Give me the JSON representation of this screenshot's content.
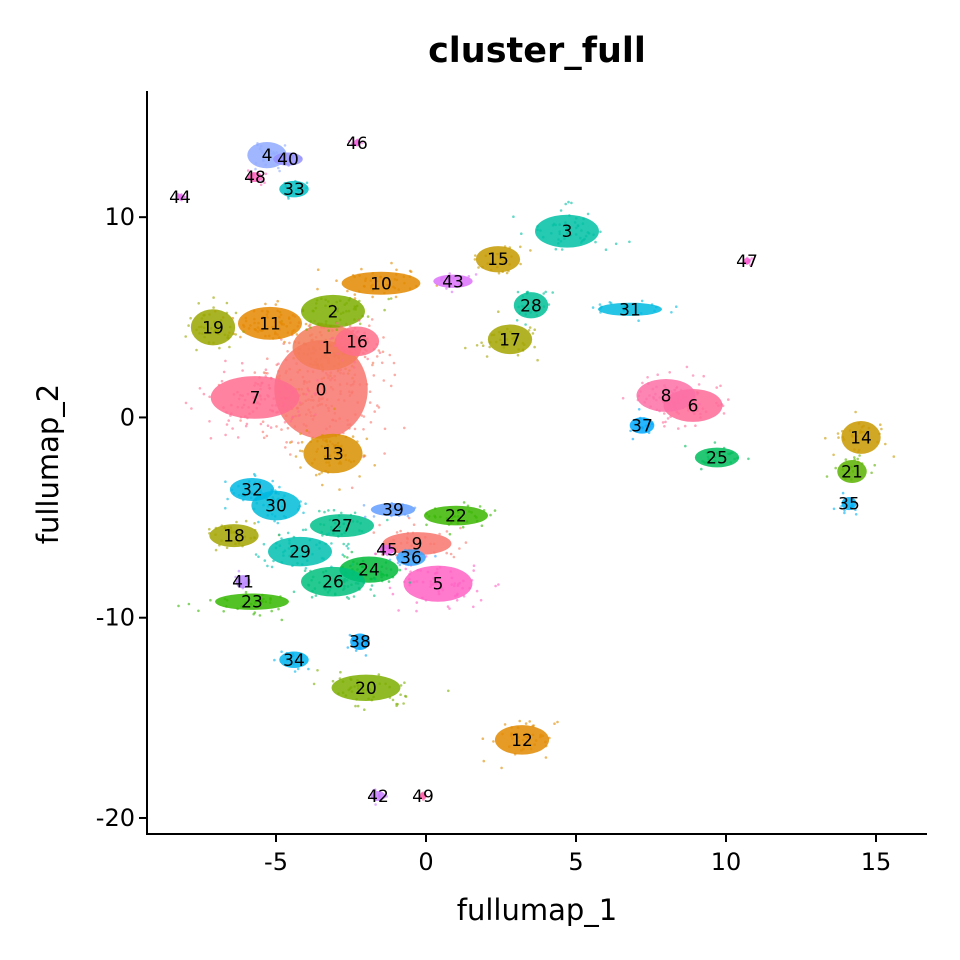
{
  "chart_data": {
    "type": "scatter",
    "title": "cluster_full",
    "xlabel": "fullumap_1",
    "ylabel": "fullumap_2",
    "xlim": [
      -9.3,
      16.7
    ],
    "ylim": [
      -20.8,
      16.3
    ],
    "x_ticks": [
      {
        "value": -5,
        "label": "-5"
      },
      {
        "value": 0,
        "label": "0"
      },
      {
        "value": 5,
        "label": "5"
      },
      {
        "value": 10,
        "label": "10"
      },
      {
        "value": 15,
        "label": "15"
      }
    ],
    "y_ticks": [
      {
        "value": -20,
        "label": "-20"
      },
      {
        "value": -10,
        "label": "-10"
      },
      {
        "value": 0,
        "label": "0"
      },
      {
        "value": 10,
        "label": "10"
      }
    ],
    "grid": false,
    "legend": "none",
    "clusters": [
      {
        "label": "0",
        "x": -3.5,
        "y": 1.4,
        "rx": 1.9,
        "ry": 3.0,
        "color": "#F8766D"
      },
      {
        "label": "1",
        "x": -3.3,
        "y": 3.5,
        "rx": 1.4,
        "ry": 1.4,
        "color": "#F37B59"
      },
      {
        "label": "2",
        "x": -3.1,
        "y": 5.3,
        "rx": 1.3,
        "ry": 1.0,
        "color": "#7CAE00"
      },
      {
        "label": "3",
        "x": 4.7,
        "y": 9.3,
        "rx": 1.3,
        "ry": 1.0,
        "color": "#00BFA4"
      },
      {
        "label": "4",
        "x": -5.3,
        "y": 13.1,
        "rx": 0.8,
        "ry": 0.8,
        "color": "#8FAAFF"
      },
      {
        "label": "5",
        "x": 0.4,
        "y": -8.3,
        "rx": 1.4,
        "ry": 1.1,
        "color": "#FF61C3"
      },
      {
        "label": "6",
        "x": 8.9,
        "y": 0.6,
        "rx": 1.2,
        "ry": 1.0,
        "color": "#FF6A98"
      },
      {
        "label": "7",
        "x": -5.7,
        "y": 1.0,
        "rx": 1.8,
        "ry": 1.3,
        "color": "#FF6C91"
      },
      {
        "label": "8",
        "x": 8.0,
        "y": 1.1,
        "rx": 1.2,
        "ry": 1.0,
        "color": "#FB70A6"
      },
      {
        "label": "9",
        "x": -0.3,
        "y": -6.3,
        "rx": 1.4,
        "ry": 0.7,
        "color": "#F8766D"
      },
      {
        "label": "10",
        "x": -1.5,
        "y": 6.7,
        "rx": 1.6,
        "ry": 0.7,
        "color": "#E38900"
      },
      {
        "label": "11",
        "x": -5.2,
        "y": 4.7,
        "rx": 1.3,
        "ry": 1.0,
        "color": "#E58700"
      },
      {
        "label": "12",
        "x": 3.2,
        "y": -16.1,
        "rx": 1.1,
        "ry": 0.9,
        "color": "#E18A00"
      },
      {
        "label": "13",
        "x": -3.1,
        "y": -1.8,
        "rx": 1.2,
        "ry": 1.2,
        "color": "#D89000"
      },
      {
        "label": "14",
        "x": 14.5,
        "y": -1.0,
        "rx": 0.8,
        "ry": 1.0,
        "color": "#C99800"
      },
      {
        "label": "15",
        "x": 2.4,
        "y": 7.9,
        "rx": 0.9,
        "ry": 0.8,
        "color": "#C49A00"
      },
      {
        "label": "16",
        "x": -2.3,
        "y": 3.8,
        "rx": 0.9,
        "ry": 0.9,
        "color": "#FE6E8A"
      },
      {
        "label": "17",
        "x": 2.8,
        "y": 3.9,
        "rx": 0.9,
        "ry": 0.9,
        "color": "#A3A500"
      },
      {
        "label": "18",
        "x": -6.4,
        "y": -5.9,
        "rx": 1.0,
        "ry": 0.7,
        "color": "#A3A500"
      },
      {
        "label": "19",
        "x": -7.1,
        "y": 4.5,
        "rx": 0.9,
        "ry": 1.1,
        "color": "#9AA600"
      },
      {
        "label": "20",
        "x": -2.0,
        "y": -13.5,
        "rx": 1.4,
        "ry": 0.8,
        "color": "#7CAE00"
      },
      {
        "label": "21",
        "x": 14.2,
        "y": -2.7,
        "rx": 0.6,
        "ry": 0.7,
        "color": "#5BB300"
      },
      {
        "label": "22",
        "x": 1.0,
        "y": -4.9,
        "rx": 1.3,
        "ry": 0.6,
        "color": "#39B600"
      },
      {
        "label": "23",
        "x": -5.8,
        "y": -9.2,
        "rx": 1.5,
        "ry": 0.5,
        "color": "#35B700"
      },
      {
        "label": "24",
        "x": -1.9,
        "y": -7.6,
        "rx": 1.2,
        "ry": 0.8,
        "color": "#00BA38"
      },
      {
        "label": "25",
        "x": 9.7,
        "y": -2.0,
        "rx": 0.9,
        "ry": 0.6,
        "color": "#00BD5C"
      },
      {
        "label": "26",
        "x": -3.1,
        "y": -8.2,
        "rx": 1.3,
        "ry": 0.9,
        "color": "#00BF7D"
      },
      {
        "label": "27",
        "x": -2.8,
        "y": -5.4,
        "rx": 1.3,
        "ry": 0.7,
        "color": "#00C08B"
      },
      {
        "label": "28",
        "x": 3.5,
        "y": 5.6,
        "rx": 0.7,
        "ry": 0.8,
        "color": "#00C097"
      },
      {
        "label": "29",
        "x": -4.2,
        "y": -6.7,
        "rx": 1.3,
        "ry": 0.9,
        "color": "#00C0AF"
      },
      {
        "label": "30",
        "x": -5.0,
        "y": -4.4,
        "rx": 1.0,
        "ry": 0.9,
        "color": "#00BCD8"
      },
      {
        "label": "31",
        "x": 6.8,
        "y": 5.4,
        "rx": 1.3,
        "ry": 0.4,
        "color": "#00BAE0"
      },
      {
        "label": "32",
        "x": -5.8,
        "y": -3.6,
        "rx": 0.9,
        "ry": 0.7,
        "color": "#00B9E3"
      },
      {
        "label": "33",
        "x": -4.4,
        "y": 11.4,
        "rx": 0.6,
        "ry": 0.5,
        "color": "#00BFC4"
      },
      {
        "label": "34",
        "x": -4.4,
        "y": -12.1,
        "rx": 0.6,
        "ry": 0.5,
        "color": "#00B4F0"
      },
      {
        "label": "35",
        "x": 14.1,
        "y": -4.3,
        "rx": 0.3,
        "ry": 0.4,
        "color": "#00B0F6"
      },
      {
        "label": "36",
        "x": -0.5,
        "y": -7.0,
        "rx": 0.6,
        "ry": 0.5,
        "color": "#35A2FF"
      },
      {
        "label": "37",
        "x": 7.2,
        "y": -0.4,
        "rx": 0.5,
        "ry": 0.5,
        "color": "#00A9FF"
      },
      {
        "label": "38",
        "x": -2.2,
        "y": -11.2,
        "rx": 0.4,
        "ry": 0.5,
        "color": "#00A6FF"
      },
      {
        "label": "39",
        "x": -1.1,
        "y": -4.6,
        "rx": 0.9,
        "ry": 0.4,
        "color": "#619CFF"
      },
      {
        "label": "40",
        "x": -4.6,
        "y": 12.9,
        "rx": 0.6,
        "ry": 0.4,
        "color": "#9590FF"
      },
      {
        "label": "41",
        "x": -6.1,
        "y": -8.2,
        "rx": 0.3,
        "ry": 0.4,
        "color": "#B983FF"
      },
      {
        "label": "42",
        "x": -1.6,
        "y": -18.9,
        "rx": 0.3,
        "ry": 0.3,
        "color": "#C77CFF"
      },
      {
        "label": "43",
        "x": 0.9,
        "y": 6.8,
        "rx": 0.8,
        "ry": 0.4,
        "color": "#DC71FA"
      },
      {
        "label": "44",
        "x": -8.2,
        "y": 11.0,
        "rx": 0.15,
        "ry": 0.15,
        "color": "#E76BF3"
      },
      {
        "label": "45",
        "x": -1.3,
        "y": -6.6,
        "rx": 0.3,
        "ry": 0.3,
        "color": "#ED68ED"
      },
      {
        "label": "46",
        "x": -2.3,
        "y": 13.7,
        "rx": 0.15,
        "ry": 0.15,
        "color": "#F564E3"
      },
      {
        "label": "47",
        "x": 10.7,
        "y": 7.8,
        "rx": 0.15,
        "ry": 0.15,
        "color": "#FC61D5"
      },
      {
        "label": "48",
        "x": -5.7,
        "y": 12.0,
        "rx": 0.3,
        "ry": 0.3,
        "color": "#FF62BC"
      },
      {
        "label": "49",
        "x": -0.1,
        "y": -18.9,
        "rx": 0.15,
        "ry": 0.15,
        "color": "#FF65AE"
      }
    ]
  }
}
